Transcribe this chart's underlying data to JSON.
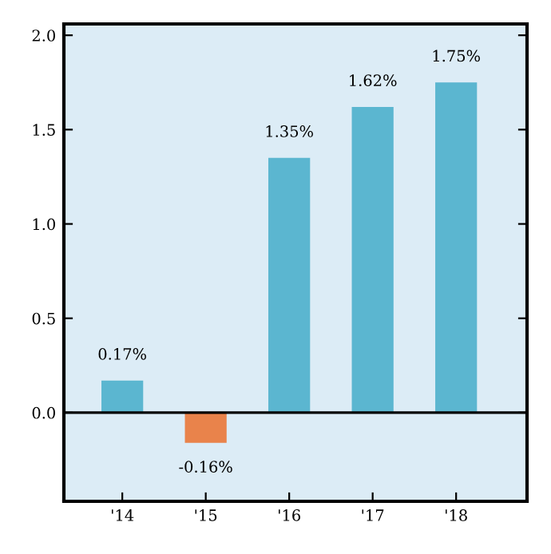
{
  "chart_data": {
    "type": "bar",
    "categories": [
      "'14",
      "'15",
      "'16",
      "'17",
      "'18"
    ],
    "values": [
      0.17,
      -0.16,
      1.35,
      1.62,
      1.75
    ],
    "colors": [
      "#5bb6d0",
      "#e9834b",
      "#5bb6d0",
      "#5bb6d0",
      "#5bb6d0"
    ],
    "value_labels": [
      "0.17%",
      "-0.16%",
      "1.35%",
      "1.62%",
      "1.75%"
    ],
    "ylim": [
      -0.47,
      2.06
    ],
    "yticks": [
      {
        "value": 0,
        "label": "0.0"
      },
      0.5,
      {
        "value": 1,
        "label": "1.0"
      },
      1.5,
      {
        "value": 2,
        "label": "2.0"
      }
    ],
    "ref_lines": [
      {
        "axis": "y",
        "value": 0,
        "color": "#000000"
      }
    ],
    "grid": false
  }
}
